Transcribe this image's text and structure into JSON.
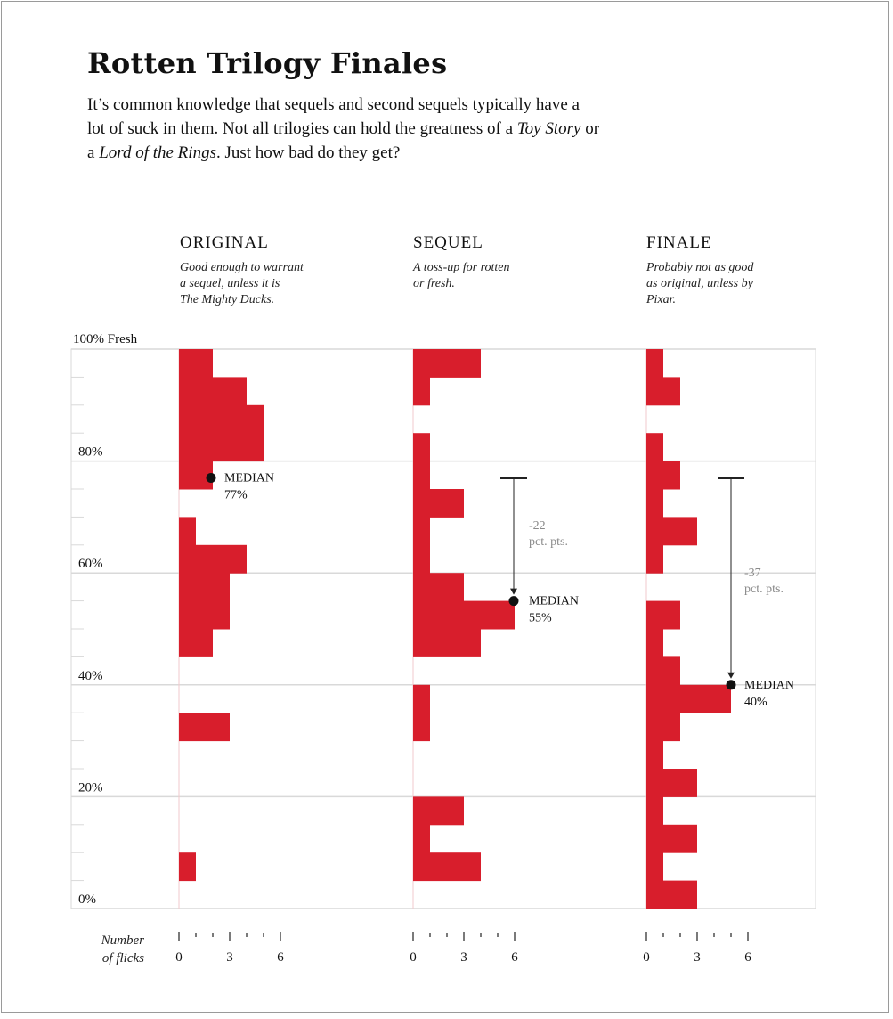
{
  "title": "Rotten Trilogy Finales",
  "intro": {
    "line1": "It’s common knowledge that sequels and second sequels typically have a",
    "line2": "lot of suck in them. Not all trilogies can hold the greatness of a ",
    "line2_italic": "Toy Story",
    "line2_tail": " or",
    "line3_head": "a ",
    "line3_italic": "Lord of the Rings",
    "line3_tail": ". Just how bad do they get?"
  },
  "panels": [
    {
      "heading": "ORIGINAL",
      "desc": [
        "Good enough to warrant",
        "a sequel, unless it is",
        "The Mighty Ducks."
      ]
    },
    {
      "heading": "SEQUEL",
      "desc": [
        "A toss-up for rotten",
        "or fresh."
      ]
    },
    {
      "heading": "FINALE",
      "desc": [
        "Probably not as good",
        "as original, unless by",
        "Pixar."
      ]
    }
  ],
  "footer_label": [
    "Number",
    "of flicks"
  ],
  "colors": {
    "bar": "#d81e2c",
    "grid": "#d9d9d9",
    "text": "#111111",
    "annotation": "#8a8a8a"
  },
  "chart_data": {
    "type": "bar",
    "orientation": "horizontal",
    "y_axis": {
      "label_top": "100% Fresh",
      "ticks": [
        "80%",
        "60%",
        "40%",
        "20%",
        "0%"
      ],
      "range": [
        0,
        100
      ],
      "bin_width": 5
    },
    "x_axis": {
      "label": "Number of flicks",
      "ticks": [
        "0",
        "3",
        "6"
      ],
      "range": [
        0,
        6
      ]
    },
    "bins": [
      "95-100",
      "90-95",
      "85-90",
      "80-85",
      "75-80",
      "70-75",
      "65-70",
      "60-65",
      "55-60",
      "50-55",
      "45-50",
      "40-45",
      "35-40",
      "30-35",
      "25-30",
      "20-25",
      "15-20",
      "10-15",
      "5-10",
      "0-5"
    ],
    "series": [
      {
        "name": "ORIGINAL",
        "counts": [
          2,
          4,
          5,
          5,
          2,
          0,
          1,
          4,
          3,
          3,
          2,
          0,
          0,
          3,
          0,
          0,
          0,
          0,
          1,
          0
        ],
        "median": 77,
        "median_label": [
          "MEDIAN",
          "77%"
        ]
      },
      {
        "name": "SEQUEL",
        "counts": [
          4,
          1,
          0,
          1,
          1,
          3,
          1,
          1,
          3,
          6,
          4,
          0,
          1,
          1,
          0,
          0,
          3,
          1,
          4,
          0
        ],
        "median": 55,
        "median_label": [
          "MEDIAN",
          "55%"
        ],
        "change_label": [
          "-22",
          "pct. pts."
        ]
      },
      {
        "name": "FINALE",
        "counts": [
          1,
          2,
          0,
          1,
          2,
          1,
          3,
          1,
          0,
          2,
          1,
          2,
          5,
          2,
          1,
          3,
          1,
          3,
          1,
          3
        ],
        "median": 40,
        "median_label": [
          "MEDIAN",
          "40%"
        ],
        "change_label": [
          "-37",
          "pct. pts."
        ]
      }
    ],
    "reference_median": 77,
    "gridlines": [
      0,
      20,
      40,
      60,
      80,
      100
    ],
    "grid": true,
    "legend": "none"
  }
}
